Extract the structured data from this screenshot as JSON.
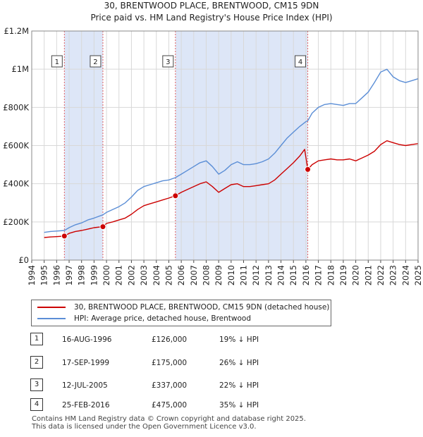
{
  "chart_data": {
    "type": "line",
    "title": "30, BRENTWOOD PLACE, BRENTWOOD, CM15 9DN",
    "subtitle": "Price paid vs. HM Land Registry's House Price Index (HPI)",
    "xlim": [
      1994,
      2025
    ],
    "ylim": [
      0,
      1200000
    ],
    "x_ticks": [
      "1994",
      "1995",
      "1996",
      "1997",
      "1998",
      "1999",
      "2000",
      "2001",
      "2002",
      "2003",
      "2004",
      "2005",
      "2006",
      "2007",
      "2008",
      "2009",
      "2010",
      "2011",
      "2012",
      "2013",
      "2014",
      "2015",
      "2016",
      "2017",
      "2018",
      "2019",
      "2020",
      "2021",
      "2022",
      "2023",
      "2024",
      "2025"
    ],
    "y_ticks": [
      {
        "value": 0,
        "label": "£0"
      },
      {
        "value": 200000,
        "label": "£200K"
      },
      {
        "value": 400000,
        "label": "£400K"
      },
      {
        "value": 600000,
        "label": "£600K"
      },
      {
        "value": 800000,
        "label": "£800K"
      },
      {
        "value": 1000000,
        "label": "£1M"
      },
      {
        "value": 1200000,
        "label": "£1.2M"
      }
    ],
    "grid": true,
    "series": [
      {
        "name": "30, BRENTWOOD PLACE, BRENTWOOD, CM15 9DN (detached house)",
        "color": "#cc0000",
        "x": [
          1995.0,
          1995.5,
          1996.0,
          1996.62,
          1997.0,
          1997.5,
          1998.0,
          1998.5,
          1999.0,
          1999.71,
          2000.0,
          2000.5,
          2001.0,
          2001.5,
          2002.0,
          2002.5,
          2003.0,
          2003.5,
          2004.0,
          2004.5,
          2005.0,
          2005.53,
          2006.0,
          2006.5,
          2007.0,
          2007.5,
          2008.0,
          2008.5,
          2009.0,
          2009.5,
          2010.0,
          2010.5,
          2011.0,
          2011.5,
          2012.0,
          2012.5,
          2013.0,
          2013.5,
          2014.0,
          2014.5,
          2015.0,
          2015.5,
          2015.9,
          2016.15,
          2016.5,
          2017.0,
          2017.5,
          2018.0,
          2018.5,
          2019.0,
          2019.5,
          2020.0,
          2020.5,
          2021.0,
          2021.5,
          2022.0,
          2022.5,
          2023.0,
          2023.5,
          2024.0,
          2024.5,
          2025.0
        ],
        "y": [
          118000,
          121000,
          123000,
          126000,
          140000,
          150000,
          155000,
          162000,
          170000,
          175000,
          192000,
          200000,
          210000,
          220000,
          240000,
          265000,
          285000,
          295000,
          305000,
          315000,
          325000,
          337000,
          355000,
          370000,
          385000,
          400000,
          410000,
          385000,
          355000,
          375000,
          395000,
          400000,
          385000,
          385000,
          390000,
          395000,
          400000,
          420000,
          450000,
          480000,
          510000,
          545000,
          580000,
          475000,
          500000,
          520000,
          525000,
          530000,
          525000,
          525000,
          530000,
          520000,
          535000,
          550000,
          570000,
          605000,
          625000,
          615000,
          605000,
          600000,
          605000,
          610000
        ]
      },
      {
        "name": "HPI: Average price, detached house, Brentwood",
        "color": "#5b8ed6",
        "x": [
          1995.0,
          1995.5,
          1996.0,
          1996.62,
          1997.0,
          1997.5,
          1998.0,
          1998.5,
          1999.0,
          1999.71,
          2000.0,
          2000.5,
          2001.0,
          2001.5,
          2002.0,
          2002.5,
          2003.0,
          2003.5,
          2004.0,
          2004.5,
          2005.0,
          2005.53,
          2006.0,
          2006.5,
          2007.0,
          2007.5,
          2008.0,
          2008.5,
          2009.0,
          2009.5,
          2010.0,
          2010.5,
          2011.0,
          2011.5,
          2012.0,
          2012.5,
          2013.0,
          2013.5,
          2014.0,
          2014.5,
          2015.0,
          2015.5,
          2016.0,
          2016.15,
          2016.5,
          2017.0,
          2017.5,
          2018.0,
          2018.5,
          2019.0,
          2019.5,
          2020.0,
          2020.5,
          2021.0,
          2021.5,
          2022.0,
          2022.5,
          2023.0,
          2023.5,
          2024.0,
          2024.5,
          2025.0
        ],
        "y": [
          145000,
          150000,
          152000,
          155000,
          170000,
          185000,
          195000,
          210000,
          220000,
          237000,
          250000,
          265000,
          280000,
          300000,
          330000,
          365000,
          385000,
          395000,
          405000,
          415000,
          420000,
          432000,
          450000,
          470000,
          490000,
          510000,
          520000,
          490000,
          450000,
          470000,
          500000,
          515000,
          500000,
          500000,
          505000,
          515000,
          530000,
          560000,
          600000,
          640000,
          670000,
          700000,
          725000,
          730000,
          770000,
          800000,
          815000,
          820000,
          815000,
          810000,
          820000,
          820000,
          850000,
          880000,
          930000,
          985000,
          1000000,
          960000,
          940000,
          930000,
          940000,
          950000
        ]
      }
    ],
    "sales": [
      {
        "id": "1",
        "date": "16-AUG-1996",
        "x": 1996.62,
        "price": 126000,
        "price_label": "£126,000",
        "hpi_label": "19% ↓ HPI"
      },
      {
        "id": "2",
        "date": "17-SEP-1999",
        "x": 1999.71,
        "price": 175000,
        "price_label": "£175,000",
        "hpi_label": "26% ↓ HPI"
      },
      {
        "id": "3",
        "date": "12-JUL-2005",
        "x": 2005.53,
        "price": 337000,
        "price_label": "£337,000",
        "hpi_label": "22% ↓ HPI"
      },
      {
        "id": "4",
        "date": "25-FEB-2016",
        "x": 2016.15,
        "price": 475000,
        "price_label": "£475,000",
        "hpi_label": "35% ↓ HPI"
      }
    ],
    "shaded_ranges": [
      [
        1996.62,
        1999.71
      ],
      [
        2005.53,
        2016.15
      ]
    ],
    "shade_color": "#dde6f7"
  },
  "legend": {
    "property_label": "30, BRENTWOOD PLACE, BRENTWOOD, CM15 9DN (detached house)",
    "hpi_label": "HPI: Average price, detached house, Brentwood"
  },
  "footer": {
    "line1": "Contains HM Land Registry data © Crown copyright and database right 2025.",
    "line2": "This data is licensed under the Open Government Licence v3.0."
  }
}
